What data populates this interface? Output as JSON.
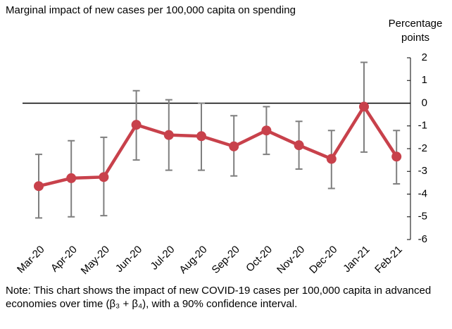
{
  "chart_data": {
    "type": "line",
    "title": "Marginal impact of new cases per 100,000 capita on spending",
    "y_label": "Percentage points",
    "note": "Note: This chart shows the impact of new COVID-19 cases per 100,000 capita in advanced economies over time (β₃ + β₄), with a 90% confidence interval.",
    "categories": [
      "Mar-20",
      "Apr-20",
      "May-20",
      "Jun-20",
      "Jul-20",
      "Aug-20",
      "Sep-20",
      "Oct-20",
      "Nov-20",
      "Dec-20",
      "Jan-21",
      "Feb-21"
    ],
    "series": [
      {
        "color": "#c8414b",
        "error_color": "#7f7f7f",
        "values": [
          -3.65,
          -3.3,
          -3.25,
          -0.95,
          -1.4,
          -1.45,
          -1.9,
          -1.2,
          -1.85,
          -2.45,
          -0.15,
          -2.35
        ],
        "lower": [
          -5.05,
          -5.0,
          -4.95,
          -2.5,
          -2.95,
          -2.95,
          -3.2,
          -2.25,
          -2.9,
          -3.75,
          -2.15,
          -3.55
        ],
        "upper": [
          -2.25,
          -1.65,
          -1.5,
          0.55,
          0.15,
          0,
          -0.55,
          -0.15,
          -0.8,
          -1.2,
          1.8,
          -1.2
        ]
      }
    ],
    "ylim": [
      -6,
      2
    ],
    "yticks": [
      -6,
      -5,
      -4,
      -3,
      -2,
      -1,
      0,
      1,
      2
    ],
    "y_axis_side": "right",
    "grid": false
  }
}
